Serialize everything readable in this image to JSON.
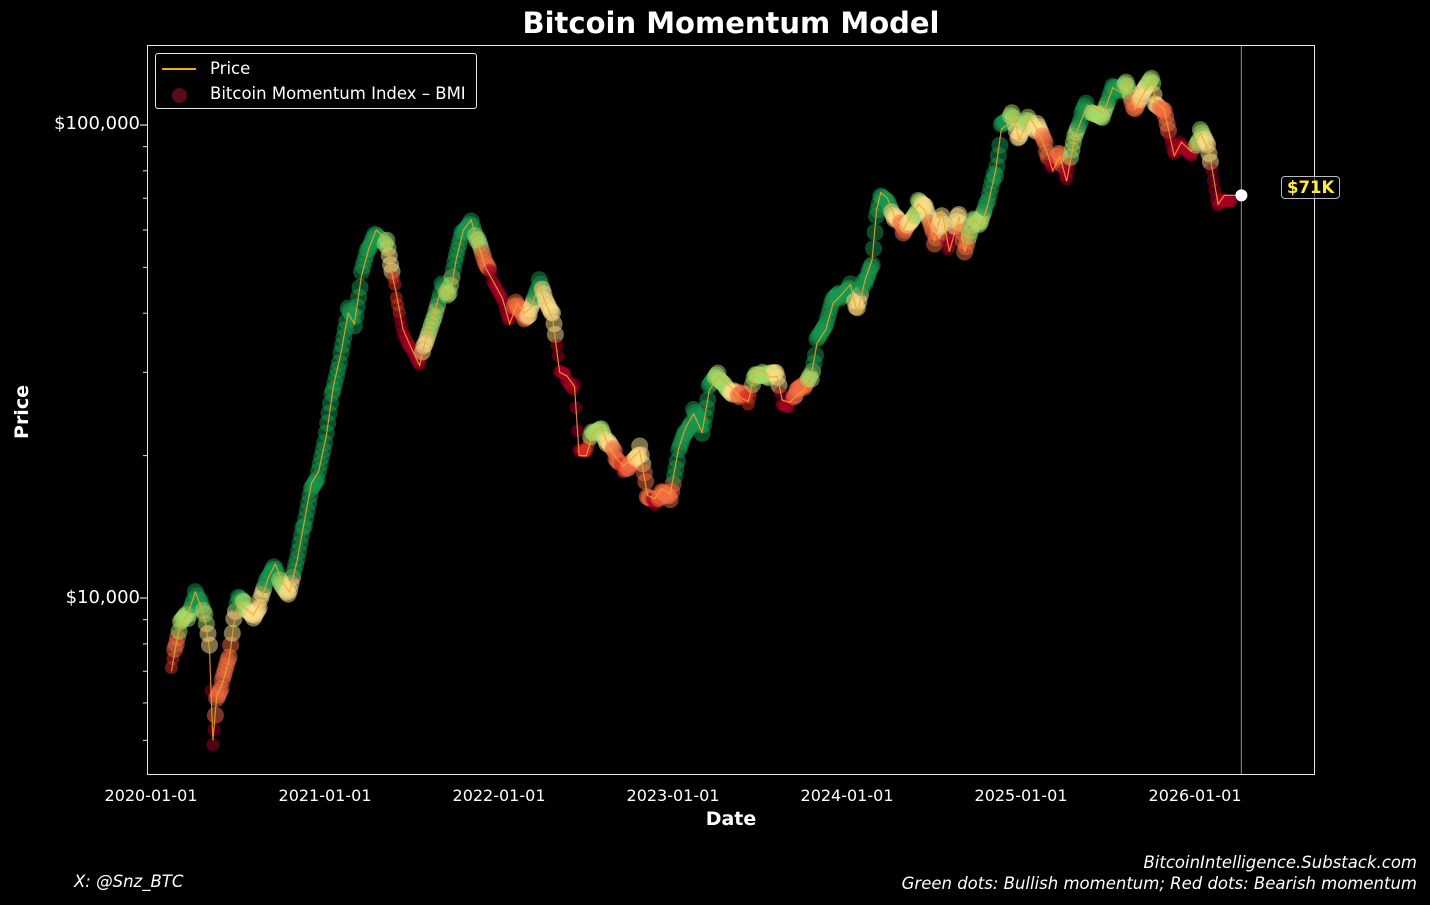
{
  "chart_data": {
    "type": "scatter",
    "title": "Bitcoin Momentum Model",
    "xlabel": "Date",
    "ylabel": "Price",
    "yscale": "log",
    "ylim": [
      4200,
      145000
    ],
    "xlim": [
      "2020-01-01",
      "2026-09-10"
    ],
    "y_ticks": [
      {
        "value": 10000,
        "label": "$10,000"
      },
      {
        "value": 100000,
        "label": "$100,000"
      }
    ],
    "x_ticks": [
      "2020-01-01",
      "2021-01-01",
      "2022-01-01",
      "2023-01-01",
      "2024-01-01",
      "2025-01-01",
      "2026-01-01"
    ],
    "legend": {
      "position": "upper left",
      "entries": [
        "Price",
        "Bitcoin Momentum Index – BMI"
      ]
    },
    "annotation": {
      "label": "$71K",
      "date": "2026-04-10",
      "value": 71000
    },
    "vline_date": "2026-04-10",
    "series": [
      {
        "name": "Price",
        "color": "#f5a623",
        "points": [
          [
            "2020-02-15",
            7000,
            "r"
          ],
          [
            "2020-02-25",
            8000,
            "o"
          ],
          [
            "2020-03-05",
            8800,
            "g"
          ],
          [
            "2020-03-20",
            9200,
            "g"
          ],
          [
            "2020-04-05",
            10300,
            "G"
          ],
          [
            "2020-04-15",
            9700,
            "G"
          ],
          [
            "2020-04-25",
            9000,
            "g"
          ],
          [
            "2020-05-05",
            7800,
            "y"
          ],
          [
            "2020-05-12",
            5000,
            "R"
          ],
          [
            "2020-05-20",
            6200,
            "o"
          ],
          [
            "2020-06-01",
            6600,
            "o"
          ],
          [
            "2020-06-15",
            7400,
            "o"
          ],
          [
            "2020-06-25",
            8800,
            "y"
          ],
          [
            "2020-07-05",
            9800,
            "G"
          ],
          [
            "2020-07-20",
            9500,
            "g"
          ],
          [
            "2020-08-05",
            9200,
            "y"
          ],
          [
            "2020-08-20",
            9800,
            "y"
          ],
          [
            "2020-09-05",
            11000,
            "G"
          ],
          [
            "2020-09-20",
            11800,
            "G"
          ],
          [
            "2020-10-05",
            10800,
            "g"
          ],
          [
            "2020-10-20",
            10300,
            "y"
          ],
          [
            "2020-11-05",
            12000,
            "G"
          ],
          [
            "2020-11-20",
            14500,
            "G"
          ],
          [
            "2020-12-05",
            17500,
            "G"
          ],
          [
            "2020-12-20",
            18500,
            "G"
          ],
          [
            "2021-01-05",
            22000,
            "G"
          ],
          [
            "2021-01-20",
            28000,
            "G"
          ],
          [
            "2021-02-05",
            33000,
            "G"
          ],
          [
            "2021-02-20",
            40000,
            "G"
          ],
          [
            "2021-03-05",
            38000,
            "G"
          ],
          [
            "2021-03-20",
            48000,
            "G"
          ],
          [
            "2021-04-05",
            55000,
            "G"
          ],
          [
            "2021-04-20",
            60000,
            "G"
          ],
          [
            "2021-05-05",
            58000,
            "G"
          ],
          [
            "2021-05-12",
            56000,
            "g"
          ],
          [
            "2021-05-20",
            50000,
            "y"
          ],
          [
            "2021-06-01",
            44000,
            "r"
          ],
          [
            "2021-06-15",
            37000,
            "R"
          ],
          [
            "2021-07-01",
            34000,
            "R"
          ],
          [
            "2021-07-20",
            31000,
            "R"
          ],
          [
            "2021-08-01",
            35000,
            "y"
          ],
          [
            "2021-08-20",
            40000,
            "g"
          ],
          [
            "2021-09-05",
            46000,
            "G"
          ],
          [
            "2021-09-20",
            43000,
            "g"
          ],
          [
            "2021-10-05",
            52000,
            "G"
          ],
          [
            "2021-10-20",
            60000,
            "G"
          ],
          [
            "2021-11-05",
            63000,
            "G"
          ],
          [
            "2021-11-20",
            56000,
            "g"
          ],
          [
            "2021-12-05",
            50000,
            "o"
          ],
          [
            "2021-12-20",
            47000,
            "R"
          ],
          [
            "2022-01-10",
            43000,
            "R"
          ],
          [
            "2022-01-25",
            38000,
            "R"
          ],
          [
            "2022-02-10",
            42000,
            "o"
          ],
          [
            "2022-02-25",
            40000,
            "o"
          ],
          [
            "2022-03-10",
            41000,
            "y"
          ],
          [
            "2022-03-28",
            46000,
            "G"
          ],
          [
            "2022-04-10",
            42000,
            "y"
          ],
          [
            "2022-04-25",
            39000,
            "y"
          ],
          [
            "2022-05-10",
            30000,
            "R"
          ],
          [
            "2022-05-25",
            29500,
            "R"
          ],
          [
            "2022-06-10",
            28000,
            "R"
          ],
          [
            "2022-06-20",
            20000,
            "R"
          ],
          [
            "2022-07-05",
            20000,
            "r"
          ],
          [
            "2022-07-20",
            22500,
            "g"
          ],
          [
            "2022-08-05",
            23000,
            "g"
          ],
          [
            "2022-08-20",
            21000,
            "y"
          ],
          [
            "2022-09-05",
            19800,
            "o"
          ],
          [
            "2022-09-20",
            19000,
            "r"
          ],
          [
            "2022-10-05",
            19500,
            "o"
          ],
          [
            "2022-10-25",
            20500,
            "y"
          ],
          [
            "2022-11-10",
            16500,
            "o"
          ],
          [
            "2022-11-25",
            16200,
            "R"
          ],
          [
            "2022-12-10",
            17000,
            "o"
          ],
          [
            "2022-12-28",
            16600,
            "o"
          ],
          [
            "2023-01-15",
            20800,
            "G"
          ],
          [
            "2023-01-30",
            23000,
            "G"
          ],
          [
            "2023-02-15",
            24500,
            "G"
          ],
          [
            "2023-03-05",
            22400,
            "G"
          ],
          [
            "2023-03-20",
            27500,
            "G"
          ],
          [
            "2023-04-10",
            29500,
            "g"
          ],
          [
            "2023-04-25",
            28500,
            "g"
          ],
          [
            "2023-05-10",
            27500,
            "y"
          ],
          [
            "2023-05-25",
            26500,
            "o"
          ],
          [
            "2023-06-10",
            26000,
            "r"
          ],
          [
            "2023-06-25",
            30500,
            "g"
          ],
          [
            "2023-07-10",
            30300,
            "g"
          ],
          [
            "2023-07-25",
            29300,
            "g"
          ],
          [
            "2023-08-10",
            29400,
            "y"
          ],
          [
            "2023-08-20",
            26200,
            "R"
          ],
          [
            "2023-09-05",
            25900,
            "R"
          ],
          [
            "2023-09-20",
            26800,
            "o"
          ],
          [
            "2023-10-05",
            27500,
            "o"
          ],
          [
            "2023-10-20",
            29500,
            "g"
          ],
          [
            "2023-11-01",
            34500,
            "G"
          ],
          [
            "2023-11-20",
            37000,
            "G"
          ],
          [
            "2023-12-05",
            42000,
            "G"
          ],
          [
            "2023-12-20",
            43500,
            "G"
          ],
          [
            "2024-01-10",
            46000,
            "G"
          ],
          [
            "2024-01-25",
            40000,
            "y"
          ],
          [
            "2024-02-10",
            47000,
            "G"
          ],
          [
            "2024-02-25",
            52000,
            "G"
          ],
          [
            "2024-03-05",
            66000,
            "G"
          ],
          [
            "2024-03-14",
            72000,
            "G"
          ],
          [
            "2024-03-28",
            70000,
            "G"
          ],
          [
            "2024-04-15",
            63000,
            "y"
          ],
          [
            "2024-04-30",
            60000,
            "o"
          ],
          [
            "2024-05-15",
            64000,
            "y"
          ],
          [
            "2024-06-01",
            68000,
            "g"
          ],
          [
            "2024-06-15",
            66000,
            "y"
          ],
          [
            "2024-07-05",
            57000,
            "o"
          ],
          [
            "2024-07-20",
            66000,
            "y"
          ],
          [
            "2024-08-05",
            54000,
            "R"
          ],
          [
            "2024-08-25",
            64000,
            "y"
          ],
          [
            "2024-09-06",
            54000,
            "o"
          ],
          [
            "2024-09-25",
            63000,
            "g"
          ],
          [
            "2024-10-10",
            61000,
            "g"
          ],
          [
            "2024-10-25",
            68000,
            "G"
          ],
          [
            "2024-11-10",
            80000,
            "G"
          ],
          [
            "2024-11-22",
            98000,
            "G"
          ],
          [
            "2024-12-05",
            100000,
            "G"
          ],
          [
            "2024-12-17",
            106000,
            "g"
          ],
          [
            "2024-12-30",
            93000,
            "y"
          ],
          [
            "2025-01-20",
            104000,
            "g"
          ],
          [
            "2025-02-05",
            98000,
            "y"
          ],
          [
            "2025-02-25",
            88000,
            "o"
          ],
          [
            "2025-03-10",
            80000,
            "R"
          ],
          [
            "2025-03-25",
            86000,
            "o"
          ],
          [
            "2025-04-08",
            76000,
            "R"
          ],
          [
            "2025-04-25",
            94000,
            "g"
          ],
          [
            "2025-05-10",
            103000,
            "G"
          ],
          [
            "2025-05-22",
            110000,
            "G"
          ],
          [
            "2025-06-10",
            108000,
            "g"
          ],
          [
            "2025-06-25",
            106000,
            "g"
          ],
          [
            "2025-07-14",
            120000,
            "G"
          ],
          [
            "2025-07-30",
            117000,
            "G"
          ],
          [
            "2025-08-14",
            123000,
            "g"
          ],
          [
            "2025-08-30",
            108000,
            "o"
          ],
          [
            "2025-09-15",
            116000,
            "y"
          ],
          [
            "2025-10-06",
            125000,
            "g"
          ],
          [
            "2025-10-11",
            112000,
            "y"
          ],
          [
            "2025-10-30",
            108000,
            "o"
          ],
          [
            "2025-11-20",
            86000,
            "R"
          ],
          [
            "2025-12-05",
            92000,
            "R"
          ],
          [
            "2025-12-25",
            88000,
            "R"
          ],
          [
            "2026-01-14",
            96000,
            "g"
          ],
          [
            "2026-02-01",
            88000,
            "y"
          ],
          [
            "2026-02-10",
            78000,
            "R"
          ],
          [
            "2026-02-20",
            68000,
            "R"
          ],
          [
            "2026-03-05",
            71000,
            "R"
          ],
          [
            "2026-04-10",
            71000,
            "W"
          ]
        ]
      },
      {
        "name": "Bitcoin Momentum Index – BMI",
        "colorscale": {
          "R": "#a50026",
          "r": "#d73027",
          "o": "#f46d43",
          "y": "#fee08b",
          "g": "#a6d96a",
          "G": "#1a9850",
          "W": "#ffffff"
        }
      }
    ]
  },
  "footer": {
    "left": "X: @Snz_BTC",
    "right_line1": "BitcoinIntelligence.Substack.com",
    "right_line2": "Green dots: Bullish momentum; Red dots: Bearish momentum"
  }
}
